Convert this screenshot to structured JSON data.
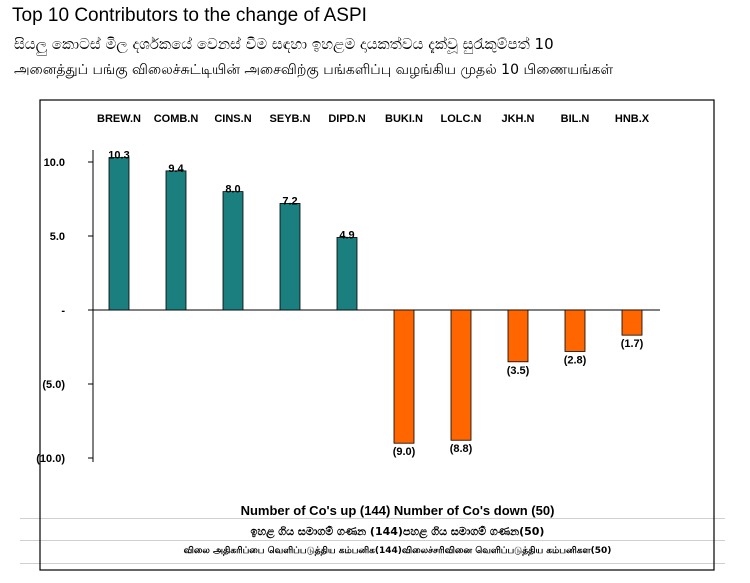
{
  "header": {
    "title": "Top 10 Contributors to the change of ASPI",
    "subtitle_sinhala": "සියලු කොටස් මිල දර්ශකයේ වෙනස් වීම සඳහා ඉහළම දායකත්වය දැක්වූ සුරැකුම්පත් 10",
    "subtitle_tamil": "அனைத்துப் பங்கு விலைச்சுட்டியின் அசைவிற்கு பங்களிப்பு வழங்கிய முதல் 10 பிணையங்கள்"
  },
  "footer": {
    "line_en": "Number of Co's up (144) Number of Co's down  (50)",
    "line_si": "ඉහළ ගිය සමාගම් ගණන (144)පහළ ගිය සමාගම් ගණන(50)",
    "line_ta": "விலை அதிகரிப்பை வெளிப்படுத்திய கம்பனிக(144)விலைச்சரிவினை வெளிப்படுத்திய கம்பனிகள(50)"
  },
  "chart_data": {
    "type": "bar",
    "categories": [
      "BREW.N",
      "COMB.N",
      "CINS.N",
      "SEYB.N",
      "DIPD.N",
      "BUKI.N",
      "LOLC.N",
      "JKH.N",
      "BIL.N",
      "HNB.X"
    ],
    "values": [
      10.3,
      9.4,
      8.0,
      7.2,
      4.9,
      -9.0,
      -8.8,
      -3.5,
      -2.8,
      -1.7
    ],
    "data_labels": [
      "10.3",
      "9.4",
      "8.0",
      "7.2",
      "4.9",
      "(9.0)",
      "(8.8)",
      "(3.5)",
      "(2.8)",
      "(1.7)"
    ],
    "y_ticks": [
      10,
      5,
      0,
      -5,
      -10
    ],
    "y_tick_labels": [
      "10.0",
      "5.0",
      "-",
      "(5.0)",
      "(10.0)"
    ],
    "ylim": [
      -10,
      10
    ],
    "xlabel": "",
    "ylabel": "",
    "category_labels_position": "top",
    "grid": false,
    "legend": "none",
    "colors": {
      "positive": "#1b7f7f",
      "negative": "#ff6600",
      "axis": "#000000",
      "plot_border": "#000000",
      "background_rule": "#d0d0d0"
    }
  }
}
